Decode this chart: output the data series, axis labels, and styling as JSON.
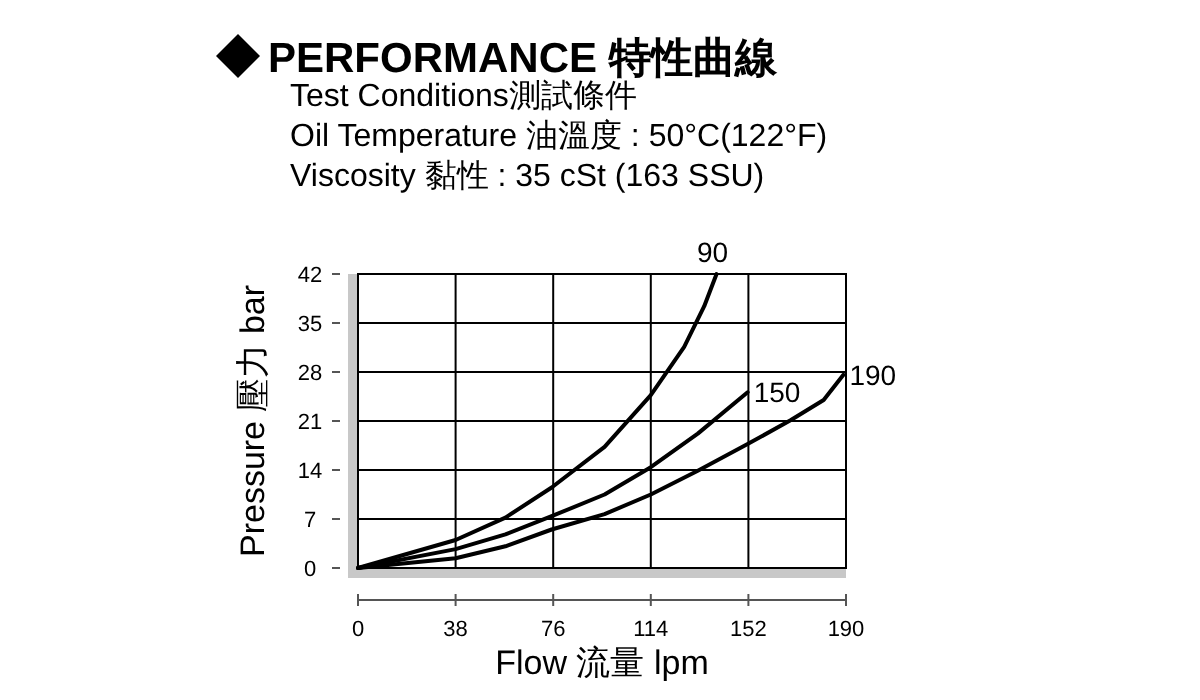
{
  "chart_data": {
    "type": "line",
    "title": "PERFORMANCE 特性曲線",
    "annotations": [
      "Test Conditions測試條件",
      "Oil Temperature 油溫度 : 50°C(122°F)",
      "Viscosity 黏性 : 35 cSt (163 SSU)"
    ],
    "xlabel": "Flow 流量 lpm",
    "ylabel": "Pressure 壓力 bar",
    "xlim": [
      0,
      190
    ],
    "ylim": [
      0,
      42
    ],
    "xticks": [
      0,
      38,
      76,
      114,
      152,
      190
    ],
    "yticks": [
      0,
      7,
      14,
      21,
      28,
      35,
      42
    ],
    "grid": true,
    "line_style": "solid",
    "series": [
      {
        "name": "90",
        "color": "#000000",
        "x": [
          0,
          38,
          57.4,
          75.4,
          96,
          114,
          127,
          134.8,
          139.6
        ],
        "values": [
          0,
          4.0,
          7.2,
          11.5,
          17.3,
          24.7,
          31.6,
          37.4,
          42
        ]
      },
      {
        "name": "150",
        "color": "#000000",
        "x": [
          0,
          38,
          57.4,
          75.4,
          96,
          114,
          132.3,
          151.7
        ],
        "values": [
          0,
          2.7,
          4.8,
          7.4,
          10.5,
          14.4,
          19.2,
          25.1
        ]
      },
      {
        "name": "190",
        "color": "#000000",
        "x": [
          0,
          38,
          57.4,
          75.4,
          96,
          114,
          132.3,
          151.7,
          168.4,
          181.3,
          189
        ],
        "values": [
          0,
          1.4,
          3.1,
          5.5,
          7.7,
          10.5,
          13.9,
          17.7,
          21.1,
          24,
          27.6
        ]
      }
    ]
  }
}
